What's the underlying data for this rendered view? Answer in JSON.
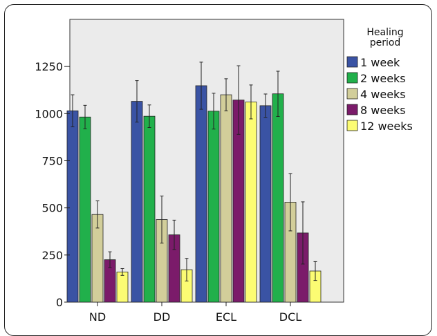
{
  "chart_data": {
    "type": "bar",
    "title": "",
    "xlabel": "",
    "ylabel": "",
    "categories": [
      "ND",
      "DD",
      "ECL",
      "DCL"
    ],
    "yticks": [
      "0",
      "250",
      "500",
      "750",
      "1000",
      "1250"
    ],
    "ylim": [
      0,
      1500
    ],
    "error_bars": true,
    "grid": false,
    "legend": {
      "title_lines": [
        "Healing",
        "period"
      ],
      "placement": "right"
    },
    "series": [
      {
        "name": "1 week",
        "color": "#3a53a4",
        "values": [
          1015,
          1065,
          1148,
          1042
        ],
        "error": [
          85,
          110,
          125,
          62
        ]
      },
      {
        "name": "2 weeks",
        "color": "#21b04b",
        "values": [
          982,
          986,
          1013,
          1105
        ],
        "error": [
          62,
          60,
          95,
          120
        ]
      },
      {
        "name": "4 weeks",
        "color": "#d2ce9a",
        "values": [
          465,
          438,
          1100,
          530
        ],
        "error": [
          72,
          125,
          85,
          152
        ]
      },
      {
        "name": "8 weeks",
        "color": "#7b1b6a",
        "values": [
          225,
          357,
          1072,
          367
        ],
        "error": [
          42,
          78,
          182,
          165
        ]
      },
      {
        "name": "12 weeks",
        "color": "#fcfc73",
        "values": [
          160,
          172,
          1062,
          165
        ],
        "error": [
          18,
          60,
          90,
          50
        ]
      }
    ]
  }
}
